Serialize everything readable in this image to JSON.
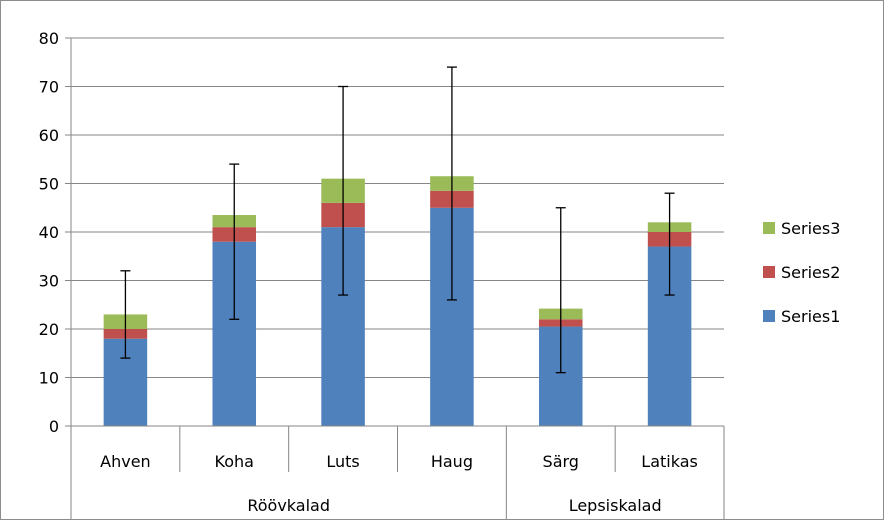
{
  "chart_data": {
    "type": "bar",
    "stacked": true,
    "categories": [
      "Ahven",
      "Koha",
      "Luts",
      "Haug",
      "Särg",
      "Latikas"
    ],
    "groups": [
      {
        "label": "Röövkalad",
        "categories": [
          "Ahven",
          "Koha",
          "Luts",
          "Haug"
        ]
      },
      {
        "label": "Lepsiskalad",
        "categories": [
          "Särg",
          "Latikas"
        ]
      }
    ],
    "series": [
      {
        "name": "Series1",
        "color": "#4f81bd",
        "values": [
          18,
          38,
          41,
          45,
          20.5,
          37
        ]
      },
      {
        "name": "Series2",
        "color": "#c0504d",
        "values": [
          2,
          3,
          5,
          3.5,
          1.5,
          3
        ]
      },
      {
        "name": "Series3",
        "color": "#9bbb59",
        "values": [
          3,
          2.5,
          5,
          3,
          2.2,
          2
        ]
      }
    ],
    "error_bars": {
      "series": "Series1",
      "lower": [
        14,
        22,
        27,
        26,
        11,
        27
      ],
      "upper": [
        32,
        54,
        70,
        74,
        45,
        48
      ]
    },
    "ylim": [
      0,
      80
    ],
    "yticks": [
      0,
      10,
      20,
      30,
      40,
      50,
      60,
      70,
      80
    ],
    "grid": true,
    "legend_position": "right",
    "title": "",
    "xlabel": "",
    "ylabel": ""
  }
}
